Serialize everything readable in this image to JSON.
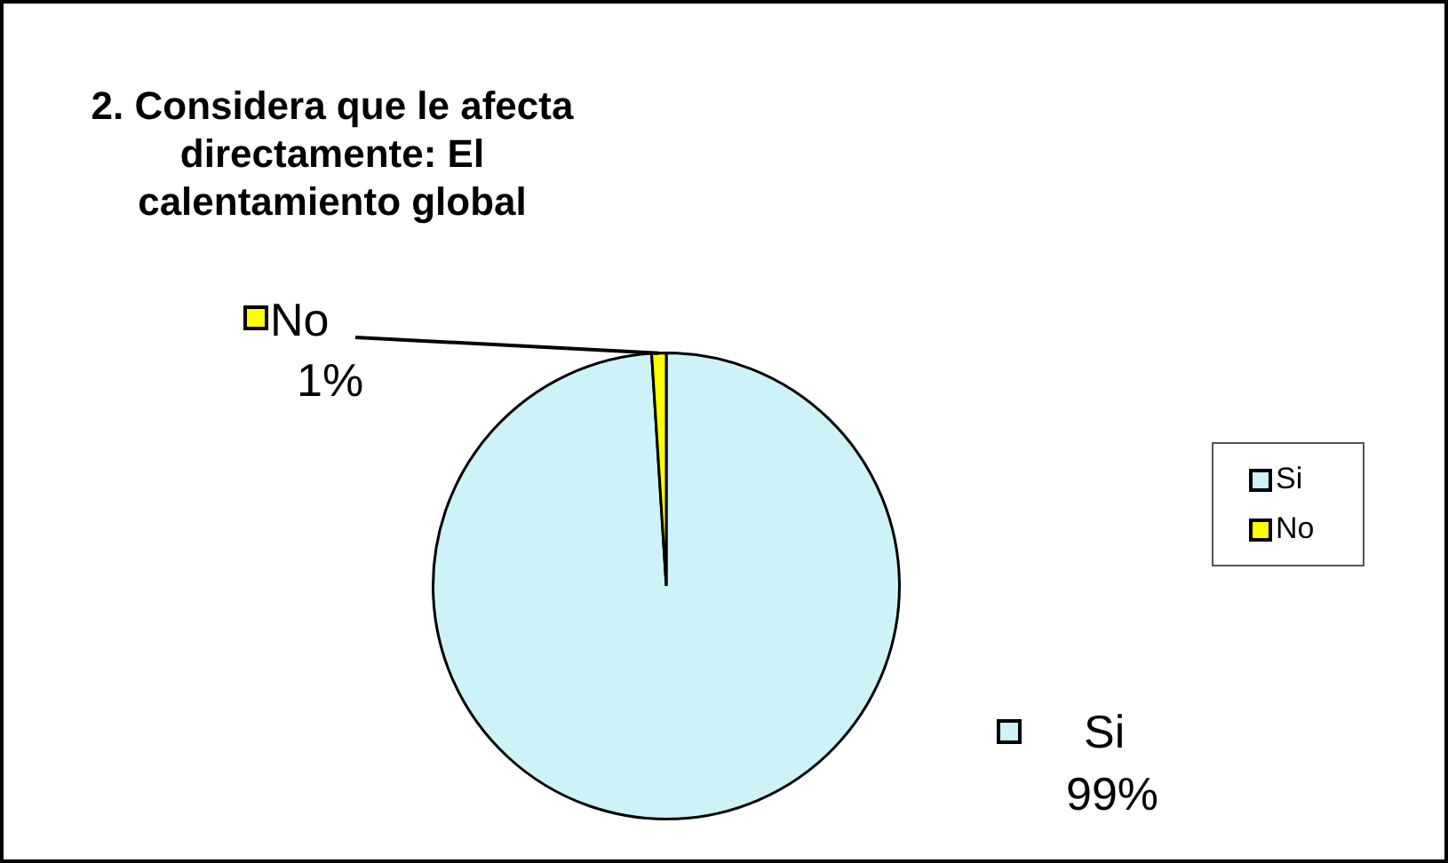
{
  "chart_data": {
    "type": "pie",
    "title": "2. Considera que le afecta directamente: El calentamiento global",
    "categories": [
      "Si",
      "No"
    ],
    "values": [
      99,
      1
    ],
    "colors": [
      "#cdf3f8",
      "#ffff00"
    ],
    "value_labels": [
      "99%",
      "1%"
    ],
    "legend": "right"
  }
}
